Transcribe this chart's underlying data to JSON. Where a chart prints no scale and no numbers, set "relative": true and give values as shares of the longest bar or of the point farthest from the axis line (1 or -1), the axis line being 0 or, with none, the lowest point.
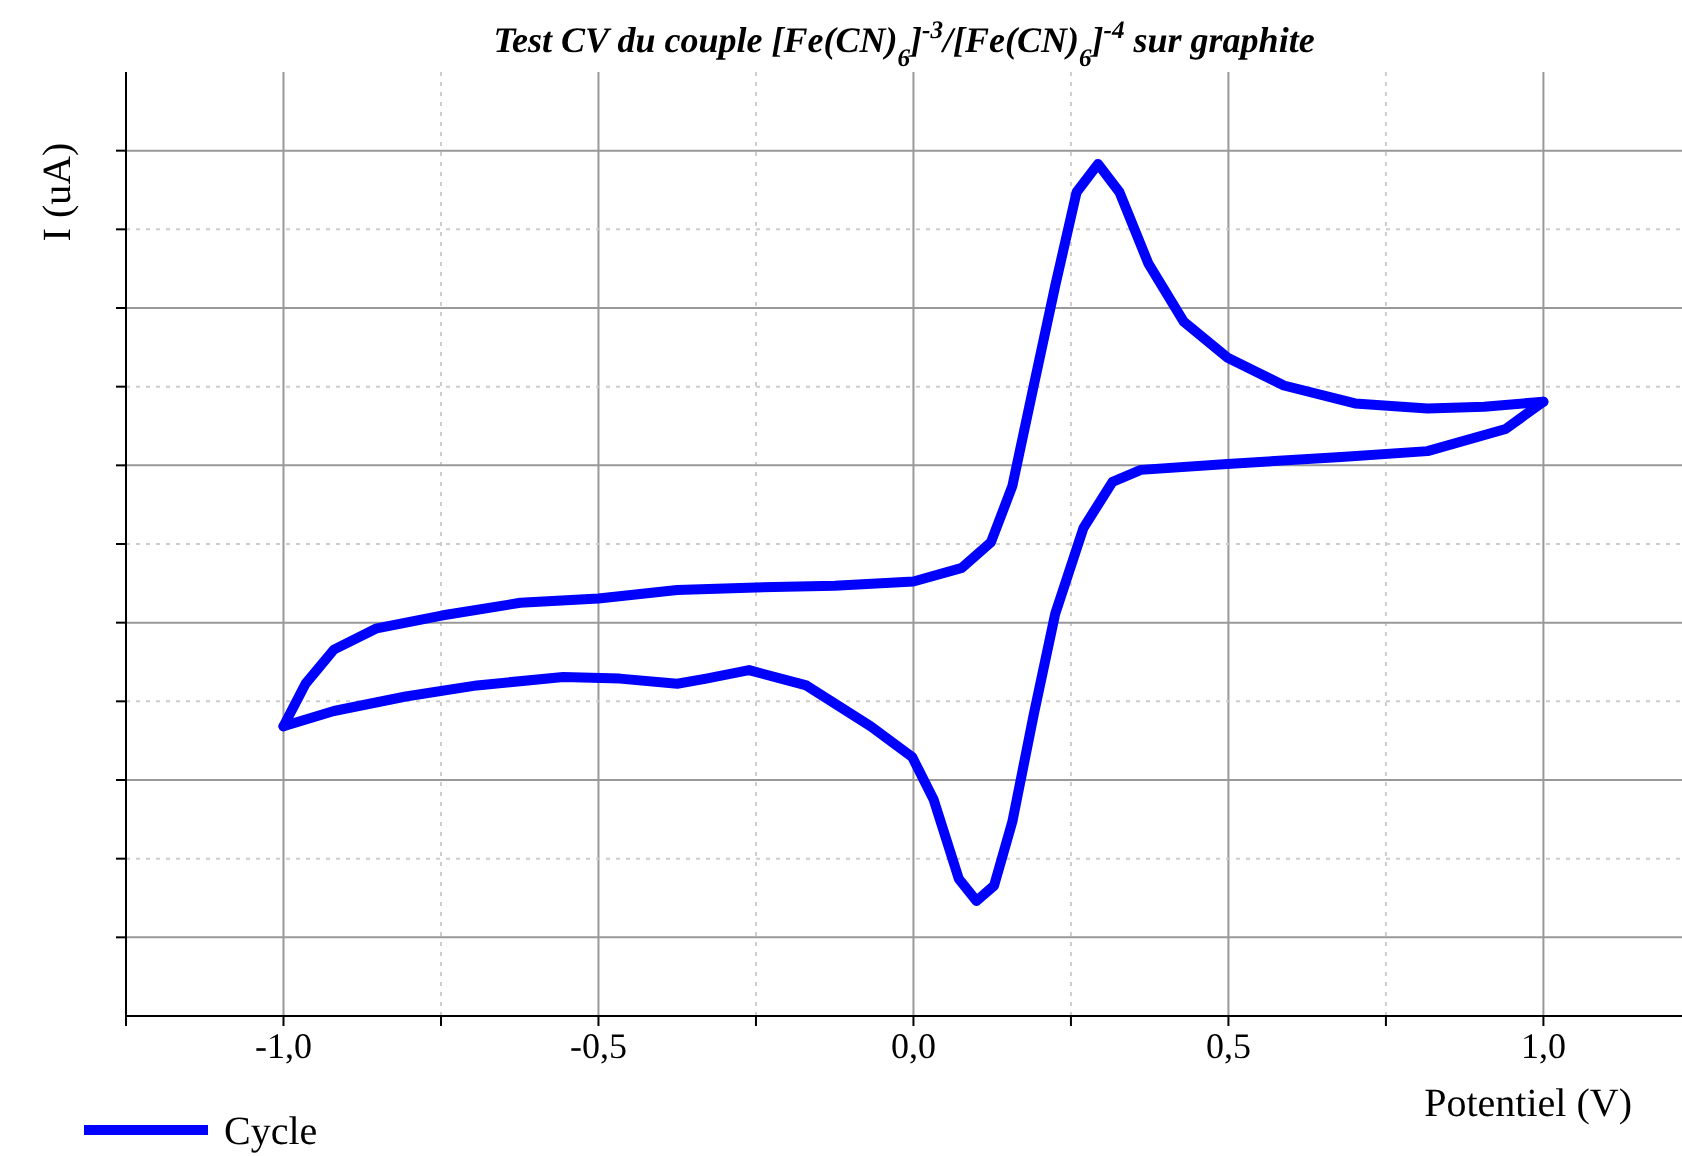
{
  "chart_data": {
    "type": "line",
    "title": "Test CV du couple [Fe(CN)$_{6}$]$^{-3}$/[Fe(CN)$_{6}$]$^{-4}$ sur graphite",
    "xlabel": "Potentiel (V)",
    "ylabel": "I (uA)",
    "relative": true,
    "xlim": [
      -1.25,
      1.22
    ],
    "xticks": [
      {
        "value": -1.25,
        "label": null
      },
      {
        "value": -1,
        "label": "-1,0"
      },
      {
        "value": -0.75,
        "label": null
      },
      {
        "value": -0.5,
        "label": "-0,5"
      },
      {
        "value": -0.25,
        "label": null
      },
      {
        "value": 0,
        "label": "0,0"
      },
      {
        "value": 0.25,
        "label": null
      },
      {
        "value": 0.5,
        "label": "0,5"
      },
      {
        "value": 0.75,
        "label": null
      },
      {
        "value": 1,
        "label": "1,0"
      }
    ],
    "grid": true,
    "legend": "bottom left",
    "marker": "none",
    "line_style": "solid",
    "series": [
      {
        "name": "Cycle",
        "color": "#0000ff",
        "x": [
          -1.0,
          -0.965,
          -0.92,
          -0.852,
          -0.749,
          -0.624,
          -0.5,
          -0.375,
          -0.25,
          -0.125,
          0.0,
          0.077,
          0.123,
          0.157,
          0.191,
          0.225,
          0.259,
          0.293,
          0.327,
          0.373,
          0.429,
          0.498,
          0.588,
          0.701,
          0.816,
          0.906,
          1.0
        ],
        "values": [
          0.34,
          0.39,
          0.43,
          0.455,
          0.47,
          0.485,
          0.49,
          0.5,
          0.503,
          0.505,
          0.51,
          0.526,
          0.556,
          0.622,
          0.74,
          0.857,
          0.967,
          1.0,
          0.967,
          0.883,
          0.815,
          0.773,
          0.74,
          0.719,
          0.713,
          0.715,
          0.721
        ]
      },
      {
        "color": "#0000ff",
        "x": [
          1.0,
          0.94,
          0.816,
          0.679,
          0.498,
          0.361,
          0.316,
          0.27,
          0.225,
          0.191,
          0.157,
          0.128,
          0.1,
          0.072,
          0.032,
          -0.002,
          -0.068,
          -0.17,
          -0.261,
          -0.329,
          -0.375,
          -0.466,
          -0.556,
          -0.693,
          -0.806,
          -0.92,
          -1.0
        ],
        "values": [
          0.721,
          0.689,
          0.663,
          0.656,
          0.648,
          0.641,
          0.627,
          0.573,
          0.472,
          0.354,
          0.228,
          0.153,
          0.135,
          0.161,
          0.254,
          0.304,
          0.34,
          0.388,
          0.406,
          0.396,
          0.39,
          0.396,
          0.398,
          0.388,
          0.375,
          0.358,
          0.34
        ]
      }
    ]
  }
}
